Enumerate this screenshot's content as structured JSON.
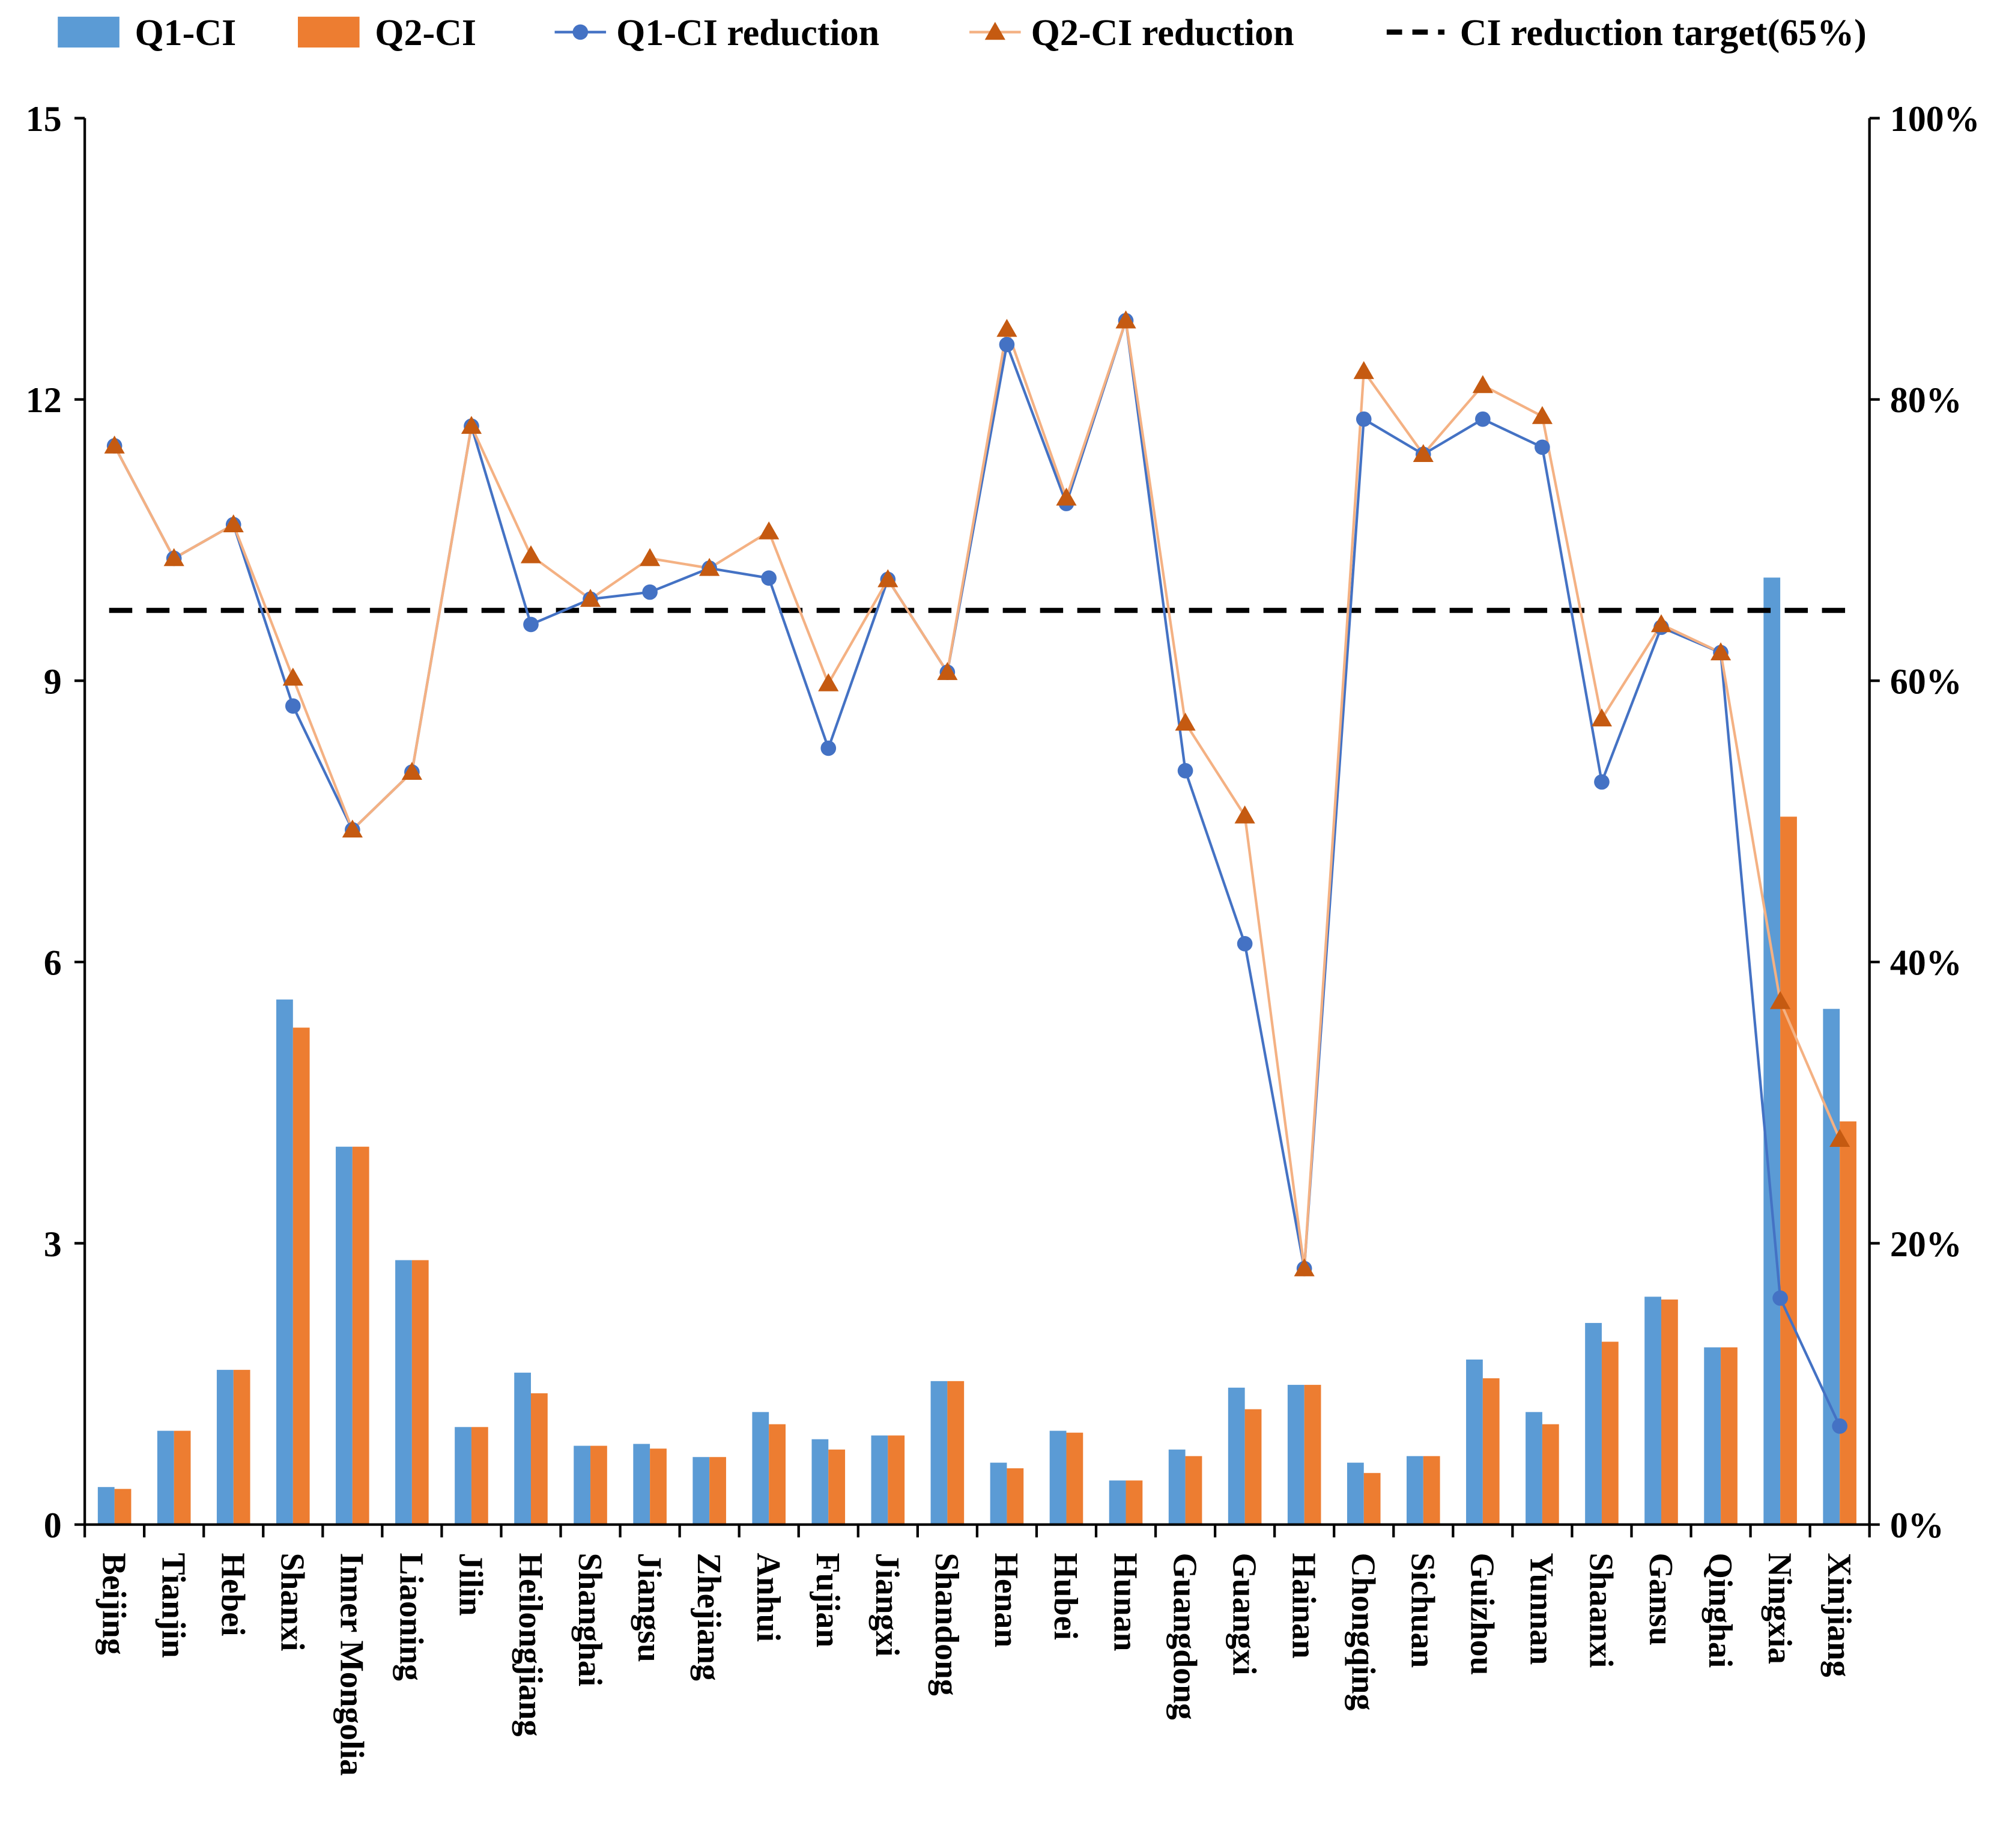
{
  "chart_data": {
    "type": "bar",
    "title": "",
    "xlabel": "",
    "ylabel": "",
    "y2label": "",
    "ylim": [
      0,
      15
    ],
    "y2lim": [
      0,
      100
    ],
    "yticks": [
      "0",
      "3",
      "6",
      "9",
      "12",
      "15"
    ],
    "y2ticks": [
      "0%",
      "20%",
      "40%",
      "60%",
      "80%",
      "100%"
    ],
    "grid": false,
    "legend_position": "top",
    "categories": [
      "Beijing",
      "Tianjin",
      "Hebei",
      "Shanxi",
      "Inner Mongolia",
      "Liaoning",
      "Jilin",
      "Heilongjiang",
      "Shanghai",
      "Jiangsu",
      "Zhejiang",
      "Anhui",
      "Fujian",
      "Jiangxi",
      "Shandong",
      "Henan",
      "Hubei",
      "Hunan",
      "Guangdong",
      "Guangxi",
      "Hainan",
      "Chongqing",
      "Sichuan",
      "Guizhou",
      "Yunnan",
      "Shaanxi",
      "Gansu",
      "Qinghai",
      "Ningxia",
      "Xinjiang"
    ],
    "series": [
      {
        "name": "Q1-CI",
        "kind": "bar",
        "axis": "left",
        "color": "#5b9bd5",
        "values": [
          0.4,
          1.0,
          1.65,
          5.6,
          4.03,
          2.82,
          1.04,
          1.62,
          0.84,
          0.86,
          0.72,
          1.2,
          0.91,
          0.95,
          1.53,
          0.66,
          1.0,
          0.47,
          0.8,
          1.46,
          1.49,
          0.66,
          0.73,
          1.76,
          1.2,
          2.15,
          2.43,
          1.89,
          10.1,
          5.5
        ]
      },
      {
        "name": "Q2-CI",
        "kind": "bar",
        "axis": "left",
        "color": "#ed7d31",
        "values": [
          0.38,
          1.0,
          1.65,
          5.3,
          4.03,
          2.82,
          1.04,
          1.4,
          0.84,
          0.81,
          0.72,
          1.07,
          0.8,
          0.95,
          1.53,
          0.6,
          0.98,
          0.47,
          0.73,
          1.23,
          1.49,
          0.55,
          0.73,
          1.56,
          1.07,
          1.95,
          2.4,
          1.89,
          7.55,
          4.3
        ]
      },
      {
        "name": "Q1-CI reduction",
        "kind": "line",
        "axis": "right",
        "color": "#4472c4",
        "values": [
          76.7,
          68.7,
          71.1,
          58.2,
          49.4,
          53.5,
          78.1,
          64.0,
          65.8,
          66.3,
          68.0,
          67.3,
          55.2,
          67.2,
          60.6,
          83.9,
          72.6,
          85.6,
          53.6,
          41.3,
          18.2,
          78.6,
          76.1,
          78.6,
          76.6,
          52.8,
          63.8,
          62.0,
          16.1,
          7.0
        ]
      },
      {
        "name": "Q2-CI reduction",
        "kind": "line",
        "axis": "right",
        "color": "#c55a11",
        "line_color": "#f4b183",
        "values": [
          76.7,
          68.7,
          71.1,
          60.2,
          49.4,
          53.5,
          78.1,
          68.9,
          65.8,
          68.7,
          68.0,
          70.6,
          59.8,
          67.2,
          60.6,
          85.0,
          73.0,
          85.6,
          57.0,
          50.4,
          18.2,
          82.0,
          76.1,
          81.0,
          78.8,
          57.3,
          64.0,
          62.0,
          37.2,
          27.4
        ]
      },
      {
        "name": "CI reduction target(65%)",
        "kind": "dashed-line",
        "axis": "right",
        "color": "#000000",
        "value": 65
      }
    ]
  }
}
